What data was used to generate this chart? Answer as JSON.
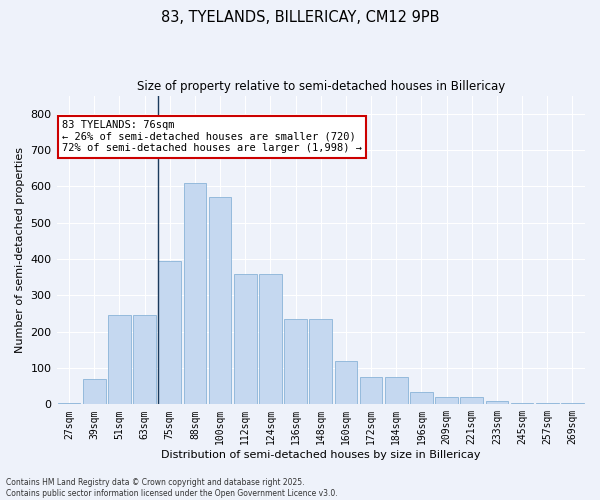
{
  "title1": "83, TYELANDS, BILLERICAY, CM12 9PB",
  "title2": "Size of property relative to semi-detached houses in Billericay",
  "xlabel": "Distribution of semi-detached houses by size in Billericay",
  "ylabel": "Number of semi-detached properties",
  "categories": [
    "27sqm",
    "39sqm",
    "51sqm",
    "63sqm",
    "75sqm",
    "88sqm",
    "100sqm",
    "112sqm",
    "124sqm",
    "136sqm",
    "148sqm",
    "160sqm",
    "172sqm",
    "184sqm",
    "196sqm",
    "209sqm",
    "221sqm",
    "233sqm",
    "245sqm",
    "257sqm",
    "269sqm"
  ],
  "values": [
    5,
    70,
    245,
    245,
    395,
    610,
    570,
    360,
    360,
    235,
    235,
    120,
    75,
    75,
    35,
    20,
    20,
    8,
    5,
    5,
    3
  ],
  "bar_color": "#c5d8f0",
  "bar_edge_color": "#8ab4d8",
  "vline_color": "#1a3a5c",
  "annotation_text": "83 TYELANDS: 76sqm\n← 26% of semi-detached houses are smaller (720)\n72% of semi-detached houses are larger (1,998) →",
  "annotation_box_color": "#ffffff",
  "annotation_box_edge": "#cc0000",
  "ylim": [
    0,
    850
  ],
  "yticks": [
    0,
    100,
    200,
    300,
    400,
    500,
    600,
    700,
    800
  ],
  "footer1": "Contains HM Land Registry data © Crown copyright and database right 2025.",
  "footer2": "Contains public sector information licensed under the Open Government Licence v3.0.",
  "bg_color": "#eef2fa"
}
